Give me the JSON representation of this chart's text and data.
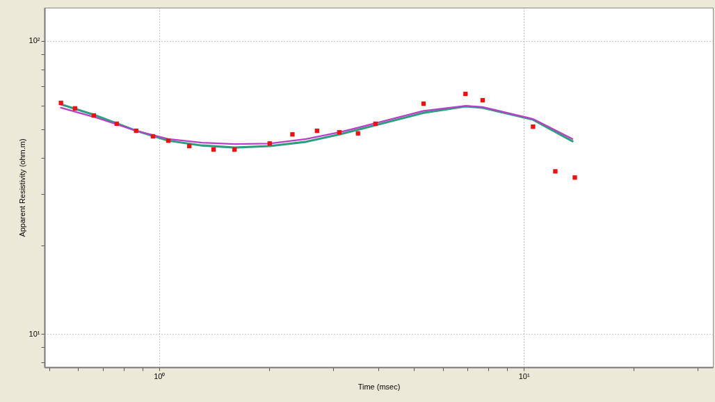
{
  "chart_data": {
    "type": "scatter",
    "xlabel": "Time (msec)",
    "ylabel": "Apparent Resistivity (ohm.m)",
    "log": "xy",
    "grid": true,
    "xlim": [
      0.485,
      33
    ],
    "ylim": [
      7.7,
      130
    ],
    "xticks": [
      {
        "value": 0.5,
        "label": null
      },
      {
        "value": 0.6,
        "label": null
      },
      {
        "value": 0.7,
        "label": null
      },
      {
        "value": 0.8,
        "label": null
      },
      {
        "value": 0.9,
        "label": null
      },
      {
        "value": 1,
        "label": "10⁰"
      },
      {
        "value": 2,
        "label": null
      },
      {
        "value": 3,
        "label": null
      },
      {
        "value": 4,
        "label": null
      },
      {
        "value": 5,
        "label": null
      },
      {
        "value": 6,
        "label": null
      },
      {
        "value": 7,
        "label": null
      },
      {
        "value": 8,
        "label": null
      },
      {
        "value": 9,
        "label": null
      },
      {
        "value": 10,
        "label": "10¹"
      },
      {
        "value": 20,
        "label": null
      },
      {
        "value": 30,
        "label": null
      }
    ],
    "yticks": [
      {
        "value": 8,
        "label": null
      },
      {
        "value": 9,
        "label": null
      },
      {
        "value": 10,
        "label": "10¹"
      },
      {
        "value": 20,
        "label": null
      },
      {
        "value": 30,
        "label": null
      },
      {
        "value": 40,
        "label": null
      },
      {
        "value": 50,
        "label": null
      },
      {
        "value": 60,
        "label": null
      },
      {
        "value": 70,
        "label": null
      },
      {
        "value": 80,
        "label": null
      },
      {
        "value": 90,
        "label": null
      },
      {
        "value": 100,
        "label": "10²"
      }
    ],
    "series": [
      {
        "type": "line",
        "color": "#2e9e80",
        "line_style": "solid",
        "marker": "none",
        "x": [
          0.538,
          0.662,
          0.865,
          1.06,
          1.31,
          1.61,
          2.01,
          2.53,
          3.12,
          3.92,
          5.31,
          6.93,
          7.71,
          10.6,
          13.6
        ],
        "values": [
          60.8,
          56.0,
          49.4,
          45.7,
          44.0,
          43.3,
          43.8,
          45.3,
          48.0,
          51.6,
          56.9,
          59.8,
          59.2,
          53.9,
          45.5
        ]
      },
      {
        "type": "line",
        "color": "#b83fc8",
        "line_style": "solid",
        "marker": "none",
        "x": [
          0.538,
          0.662,
          0.865,
          1.06,
          1.31,
          1.61,
          2.01,
          2.53,
          3.12,
          3.92,
          5.31,
          6.93,
          7.71,
          10.6,
          13.6
        ],
        "values": [
          59.2,
          55.1,
          49.4,
          46.3,
          45.0,
          44.5,
          44.7,
          46.3,
          48.8,
          52.4,
          57.8,
          60.1,
          59.5,
          54.2,
          46.3
        ]
      },
      {
        "color": "#ee1111",
        "marker": "square",
        "x": [
          0.538,
          0.588,
          0.662,
          0.765,
          0.865,
          0.962,
          1.06,
          1.21,
          1.41,
          1.61,
          2.01,
          2.32,
          2.71,
          3.12,
          3.51,
          3.92,
          5.31,
          6.92,
          7.71,
          10.6,
          12.2,
          13.8
        ],
        "values": [
          61.5,
          58.9,
          55.7,
          52.2,
          49.4,
          47.3,
          45.7,
          43.8,
          42.6,
          42.6,
          44.7,
          48.0,
          49.4,
          48.8,
          48.4,
          52.2,
          61.1,
          66.0,
          62.8,
          51.0,
          35.9,
          34.2
        ]
      }
    ]
  }
}
